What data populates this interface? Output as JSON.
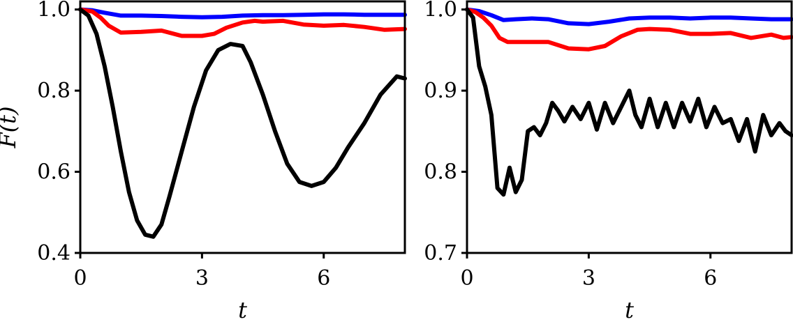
{
  "chart_data": [
    {
      "type": "line",
      "panel": "left",
      "ylabel": "F(t)",
      "xlabel": "t",
      "xlim": [
        0,
        8
      ],
      "ylim": [
        0.4,
        1.02
      ],
      "xticks": [
        0,
        3,
        6
      ],
      "xtick_labels": [
        "0",
        "3",
        "6"
      ],
      "yticks": [
        0.4,
        0.6,
        0.8,
        1.0
      ],
      "ytick_labels": [
        "0.4",
        "0.6",
        "0.8",
        "1.0"
      ],
      "grid": false,
      "series": [
        {
          "color": "#0000ff",
          "x": [
            0,
            0.3,
            0.6,
            1.0,
            1.5,
            2.0,
            2.5,
            3.0,
            3.5,
            4.0,
            4.5,
            5.0,
            5.5,
            6.0,
            6.5,
            7.0,
            7.5,
            8.0
          ],
          "y": [
            1.0,
            0.998,
            0.992,
            0.985,
            0.985,
            0.984,
            0.982,
            0.981,
            0.982,
            0.985,
            0.986,
            0.986,
            0.987,
            0.988,
            0.988,
            0.987,
            0.987,
            0.987
          ]
        },
        {
          "color": "#ff0000",
          "x": [
            0,
            0.3,
            0.5,
            0.7,
            1.0,
            1.5,
            2.0,
            2.5,
            3.0,
            3.3,
            3.6,
            4.0,
            4.3,
            4.5,
            5.0,
            5.5,
            6.0,
            6.5,
            7.0,
            7.5,
            8.0
          ],
          "y": [
            1.0,
            0.995,
            0.98,
            0.96,
            0.943,
            0.945,
            0.948,
            0.935,
            0.935,
            0.94,
            0.955,
            0.968,
            0.972,
            0.97,
            0.972,
            0.963,
            0.96,
            0.962,
            0.957,
            0.95,
            0.952
          ]
        },
        {
          "color": "#000000",
          "x": [
            0,
            0.2,
            0.4,
            0.6,
            0.8,
            1.0,
            1.2,
            1.4,
            1.6,
            1.8,
            2.0,
            2.2,
            2.5,
            2.8,
            3.1,
            3.4,
            3.7,
            4.0,
            4.2,
            4.5,
            4.8,
            5.1,
            5.4,
            5.7,
            6.0,
            6.3,
            6.6,
            7.0,
            7.4,
            7.8,
            8.0
          ],
          "y": [
            1.0,
            0.985,
            0.94,
            0.86,
            0.76,
            0.65,
            0.55,
            0.48,
            0.445,
            0.44,
            0.47,
            0.54,
            0.65,
            0.76,
            0.85,
            0.9,
            0.915,
            0.91,
            0.87,
            0.79,
            0.7,
            0.62,
            0.575,
            0.565,
            0.575,
            0.61,
            0.66,
            0.72,
            0.79,
            0.835,
            0.83
          ]
        }
      ]
    },
    {
      "type": "line",
      "panel": "right",
      "ylabel": "",
      "xlabel": "t",
      "xlim": [
        0,
        8
      ],
      "ylim": [
        0.7,
        1.01
      ],
      "xticks": [
        0,
        3,
        6
      ],
      "xtick_labels": [
        "0",
        "3",
        "6"
      ],
      "yticks": [
        0.7,
        0.8,
        0.9,
        1.0
      ],
      "ytick_labels": [
        "0.7",
        "0.8",
        "0.9",
        "1.0"
      ],
      "grid": false,
      "series": [
        {
          "color": "#0000ff",
          "x": [
            0,
            0.3,
            0.6,
            0.9,
            1.2,
            1.6,
            2.0,
            2.5,
            3.0,
            3.5,
            4.0,
            4.5,
            5.0,
            5.5,
            6.0,
            6.5,
            7.0,
            7.5,
            8.0
          ],
          "y": [
            1.0,
            0.998,
            0.993,
            0.987,
            0.988,
            0.989,
            0.988,
            0.983,
            0.982,
            0.985,
            0.989,
            0.99,
            0.99,
            0.989,
            0.99,
            0.99,
            0.989,
            0.988,
            0.988
          ]
        },
        {
          "color": "#ff0000",
          "x": [
            0,
            0.2,
            0.4,
            0.6,
            0.8,
            1.0,
            1.5,
            2.0,
            2.5,
            3.0,
            3.4,
            3.8,
            4.2,
            4.5,
            5.0,
            5.5,
            6.0,
            6.5,
            7.0,
            7.5,
            7.8,
            8.0
          ],
          "y": [
            1.0,
            0.997,
            0.99,
            0.98,
            0.965,
            0.96,
            0.96,
            0.96,
            0.952,
            0.951,
            0.955,
            0.967,
            0.975,
            0.976,
            0.975,
            0.97,
            0.97,
            0.971,
            0.965,
            0.969,
            0.965,
            0.966
          ]
        },
        {
          "color": "#000000",
          "x": [
            0,
            0.15,
            0.3,
            0.45,
            0.6,
            0.75,
            0.9,
            1.05,
            1.2,
            1.35,
            1.5,
            1.65,
            1.8,
            1.95,
            2.1,
            2.25,
            2.4,
            2.6,
            2.8,
            3.0,
            3.2,
            3.4,
            3.6,
            3.8,
            4.0,
            4.15,
            4.3,
            4.5,
            4.7,
            4.9,
            5.1,
            5.3,
            5.5,
            5.7,
            5.9,
            6.1,
            6.3,
            6.5,
            6.7,
            6.9,
            7.1,
            7.3,
            7.5,
            7.7,
            7.85,
            8.0
          ],
          "y": [
            1.0,
            0.99,
            0.93,
            0.905,
            0.87,
            0.78,
            0.772,
            0.805,
            0.775,
            0.79,
            0.85,
            0.855,
            0.845,
            0.86,
            0.885,
            0.875,
            0.862,
            0.88,
            0.865,
            0.885,
            0.852,
            0.885,
            0.86,
            0.88,
            0.9,
            0.87,
            0.855,
            0.89,
            0.855,
            0.885,
            0.855,
            0.885,
            0.862,
            0.89,
            0.855,
            0.88,
            0.86,
            0.865,
            0.838,
            0.865,
            0.825,
            0.87,
            0.845,
            0.86,
            0.85,
            0.845
          ]
        }
      ]
    }
  ]
}
